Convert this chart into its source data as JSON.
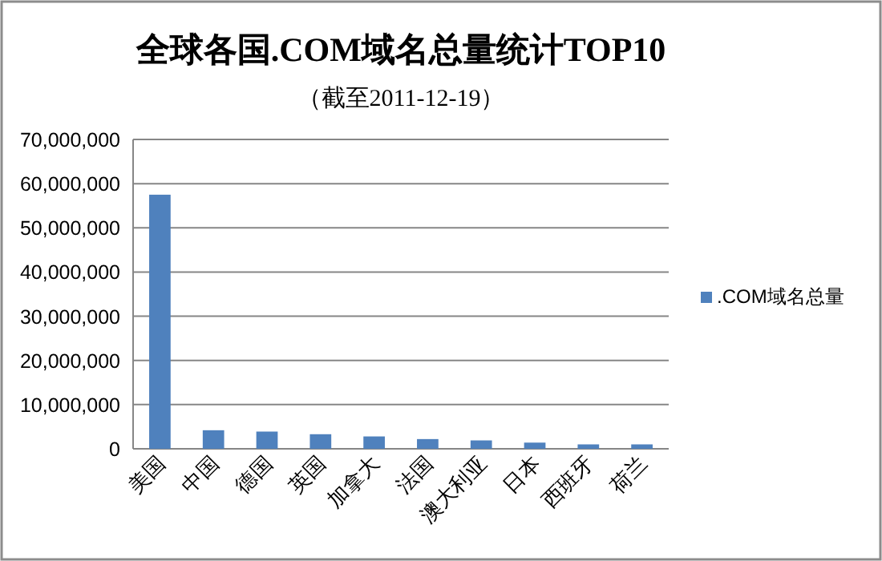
{
  "chart_data": {
    "type": "bar",
    "title": "全球各国.COM域名总量统计TOP10",
    "subtitle": "（截至2011-12-19）",
    "categories": [
      "美国",
      "中国",
      "德国",
      "英国",
      "加拿大",
      "法国",
      "澳大利亚",
      "日本",
      "西班牙",
      "荷兰"
    ],
    "series": [
      {
        "name": ".COM域名总量",
        "color": "#4f81bd",
        "values": [
          57500000,
          4200000,
          3900000,
          3300000,
          2800000,
          2200000,
          1900000,
          1400000,
          1000000,
          1000000
        ]
      }
    ],
    "ylim": [
      0,
      70000000
    ],
    "yticks": [
      {
        "value": 0,
        "label": "0"
      },
      {
        "value": 10000000,
        "label": "10,000,000"
      },
      {
        "value": 20000000,
        "label": "20,000,000"
      },
      {
        "value": 30000000,
        "label": "30,000,000"
      },
      {
        "value": 40000000,
        "label": "40,000,000"
      },
      {
        "value": 50000000,
        "label": "50,000,000"
      },
      {
        "value": 60000000,
        "label": "60,000,000"
      },
      {
        "value": 70000000,
        "label": "70,000,000"
      }
    ],
    "grid": "y",
    "legend": "right"
  }
}
